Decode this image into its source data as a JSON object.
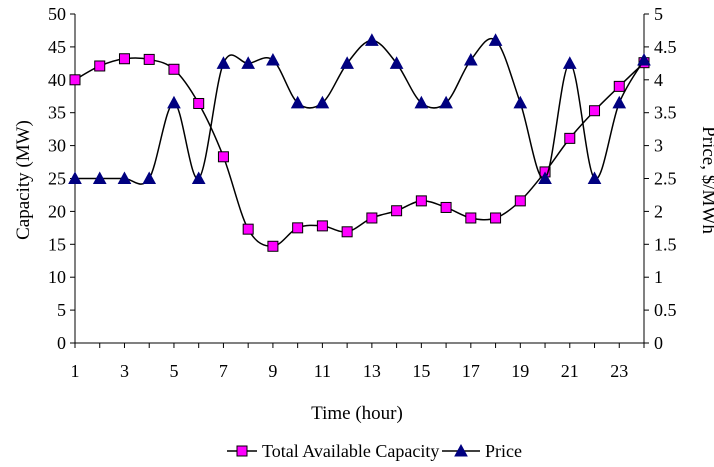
{
  "chart_data": {
    "type": "line",
    "xlabel": "Time (hour)",
    "ylabel_left": "Capacity (MW)",
    "ylabel_right": "Price, $/MWh",
    "x": [
      1,
      2,
      3,
      4,
      5,
      6,
      7,
      8,
      9,
      10,
      11,
      12,
      13,
      14,
      15,
      16,
      17,
      18,
      19,
      20,
      21,
      22,
      23,
      24
    ],
    "x_tick_labels": [
      "1",
      "3",
      "5",
      "7",
      "9",
      "11",
      "13",
      "15",
      "17",
      "19",
      "21",
      "23"
    ],
    "x_ticks": [
      1,
      3,
      5,
      7,
      9,
      11,
      13,
      15,
      17,
      19,
      21,
      23
    ],
    "ylim_left": [
      0,
      50
    ],
    "y_ticks_left": [
      "0",
      "5",
      "10",
      "15",
      "20",
      "25",
      "30",
      "35",
      "40",
      "45",
      "50"
    ],
    "ylim_right": [
      0,
      5
    ],
    "y_ticks_right": [
      "0",
      "0.5",
      "1",
      "1.5",
      "2",
      "2.5",
      "3",
      "3.5",
      "4",
      "4.5",
      "5"
    ],
    "grid": false,
    "legend_position": "bottom",
    "series": [
      {
        "name": "Total Available Capacity",
        "axis": "left",
        "marker": "square",
        "color": "#000000",
        "marker_color": "#ff00ff",
        "values": [
          40.0,
          42.1,
          43.2,
          43.1,
          41.6,
          36.4,
          28.3,
          17.3,
          14.7,
          17.5,
          17.8,
          16.9,
          19.0,
          20.1,
          21.6,
          20.6,
          19.0,
          19.0,
          21.6,
          26.0,
          31.1,
          35.3,
          39.0,
          42.6
        ]
      },
      {
        "name": "Price",
        "axis": "right",
        "marker": "triangle",
        "color": "#000000",
        "marker_color": "#000080",
        "values": [
          2.5,
          2.5,
          2.5,
          2.5,
          3.65,
          2.5,
          4.25,
          4.25,
          4.3,
          3.65,
          3.65,
          4.25,
          4.6,
          4.25,
          3.65,
          3.65,
          4.3,
          4.6,
          3.65,
          2.5,
          4.25,
          2.5,
          3.65,
          4.3
        ]
      }
    ]
  }
}
